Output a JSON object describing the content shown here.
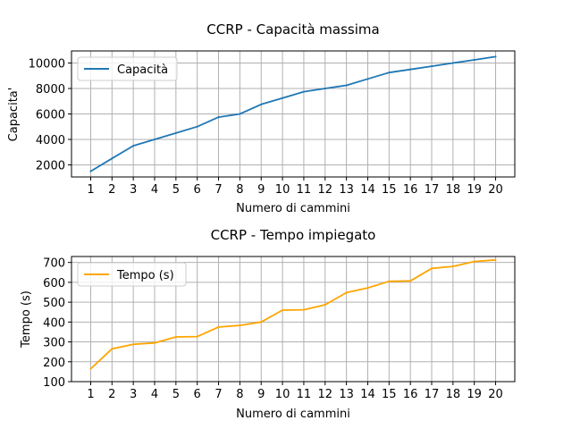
{
  "chart_data": [
    {
      "type": "line",
      "title": "CCRP - Capacità massima",
      "xlabel": "Numero di cammini",
      "ylabel": "Capacita'",
      "x": [
        1,
        2,
        3,
        4,
        5,
        6,
        7,
        8,
        9,
        10,
        11,
        12,
        13,
        14,
        15,
        16,
        17,
        18,
        19,
        20
      ],
      "xlim": [
        0.1,
        20.9
      ],
      "ylim": [
        1050,
        10950
      ],
      "yticks": [
        2000,
        4000,
        6000,
        8000,
        10000
      ],
      "grid": true,
      "legend_position": "top-left",
      "series": [
        {
          "name": "Capacità",
          "color": "#1f77b4",
          "values": [
            1500,
            2500,
            3500,
            4000,
            4500,
            5000,
            5750,
            6000,
            6750,
            7250,
            7750,
            8000,
            8250,
            8750,
            9250,
            9500,
            9750,
            10000,
            10250,
            10500
          ]
        }
      ]
    },
    {
      "type": "line",
      "title": "CCRP - Tempo impiegato",
      "xlabel": "Numero di cammini",
      "ylabel": "Tempo (s)",
      "x": [
        1,
        2,
        3,
        4,
        5,
        6,
        7,
        8,
        9,
        10,
        11,
        12,
        13,
        14,
        15,
        16,
        17,
        18,
        19,
        20
      ],
      "xlim": [
        0.1,
        20.9
      ],
      "ylim": [
        100,
        730
      ],
      "yticks": [
        100,
        200,
        300,
        400,
        500,
        600,
        700
      ],
      "grid": true,
      "legend_position": "top-left",
      "series": [
        {
          "name": "Tempo (s)",
          "color": "#ffa500",
          "values": [
            165,
            265,
            288,
            295,
            325,
            327,
            375,
            383,
            400,
            460,
            462,
            487,
            548,
            572,
            605,
            607,
            670,
            680,
            705,
            713
          ]
        }
      ]
    }
  ]
}
